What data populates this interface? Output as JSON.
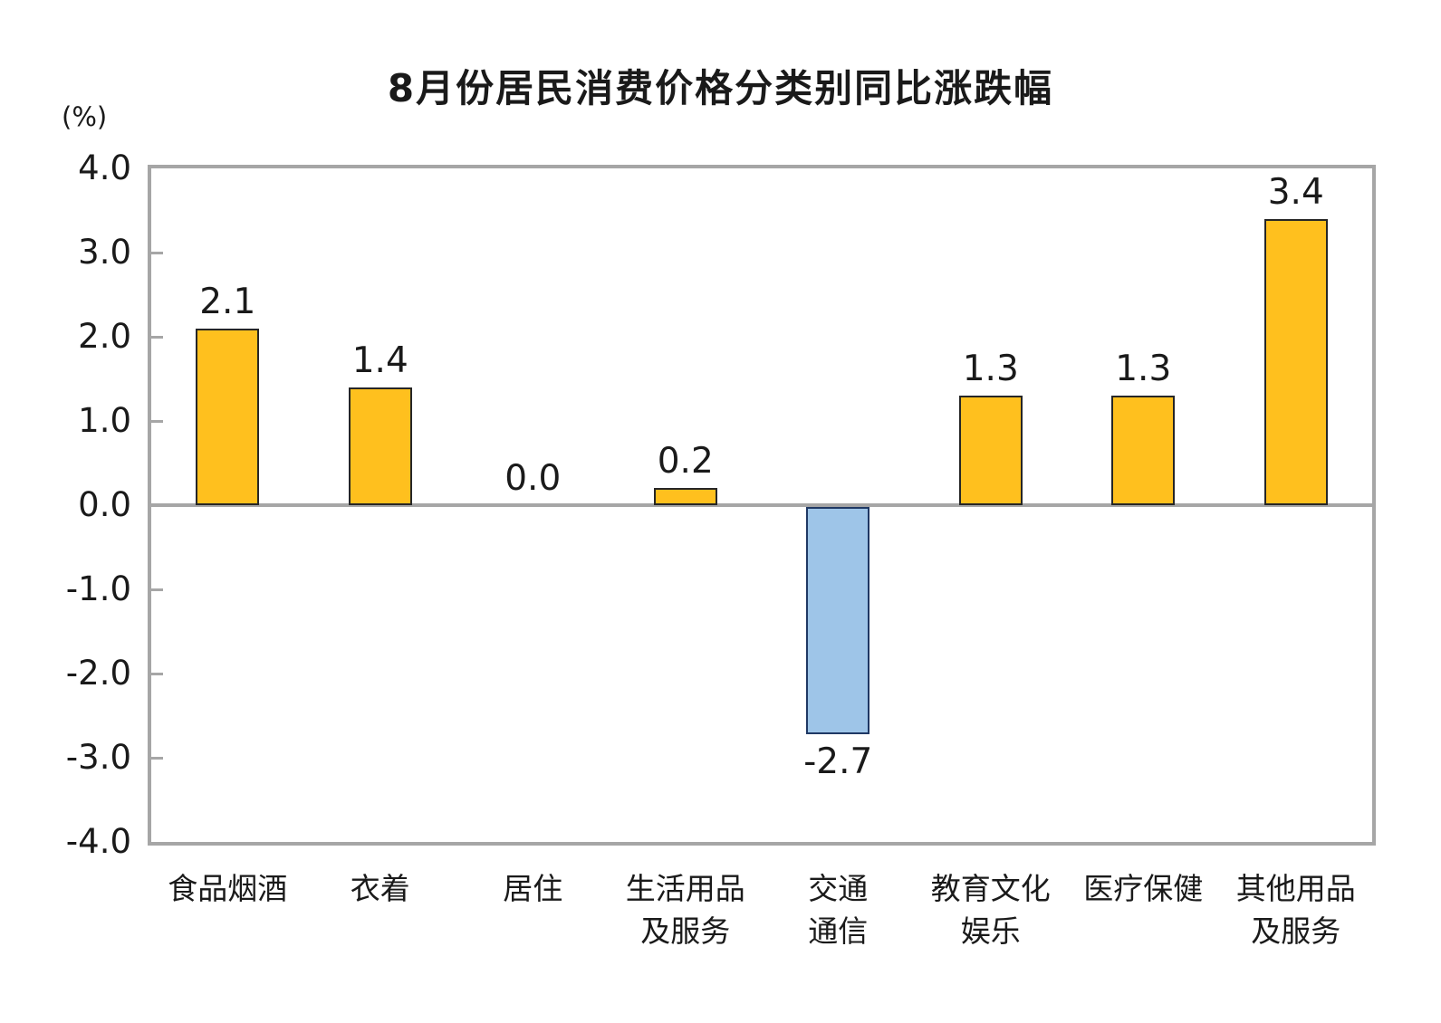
{
  "chart_data": {
    "type": "bar",
    "title": "8月份居民消费价格分类别同比涨跌幅",
    "unit_label": "(%)",
    "categories": [
      "食品烟酒",
      "衣着",
      "居住",
      "生活用品\n及服务",
      "交通\n通信",
      "教育文化\n娱乐",
      "医疗保健",
      "其他用品\n及服务"
    ],
    "values": [
      2.1,
      1.4,
      0.0,
      0.2,
      -2.7,
      1.3,
      1.3,
      3.4
    ],
    "value_labels": [
      "2.1",
      "1.4",
      "0.0",
      "0.2",
      "-2.7",
      "1.3",
      "1.3",
      "3.4"
    ],
    "yticks": [
      "4.0",
      "3.0",
      "2.0",
      "1.0",
      "0.0",
      "-1.0",
      "-2.0",
      "-3.0",
      "-4.0"
    ],
    "ylim": [
      -4.0,
      4.0
    ],
    "ytick_step": 1.0,
    "grid": false,
    "legend_position": "none",
    "colors": {
      "positive_fill": "#FFC01E",
      "negative_fill": "#9EC5E8",
      "positive_border": "#262626",
      "negative_border": "#1F3864",
      "axis": "#A6A6A6",
      "text": "#1A1A1A"
    }
  }
}
